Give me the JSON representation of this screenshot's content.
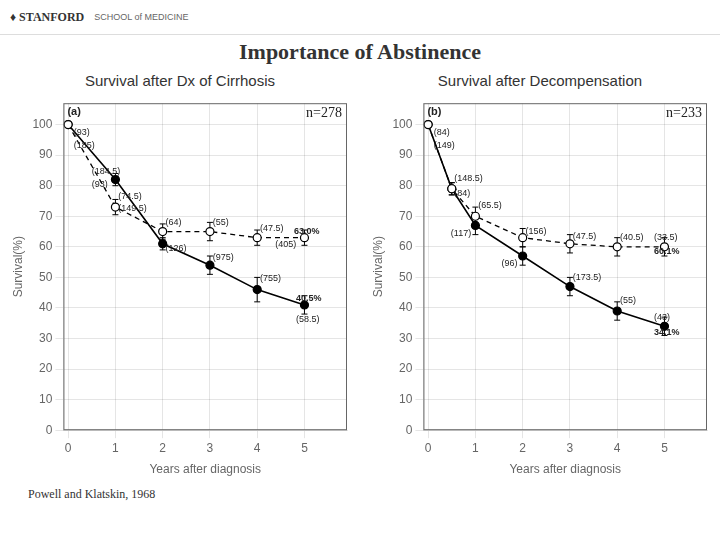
{
  "header": [
    "♦ STANFORD",
    "SCHOOL of MEDICINE"
  ],
  "title": "Importance of Abstinence",
  "footer": "Powell and Klatskin, 1968",
  "chart_data": [
    {
      "type": "line",
      "title": "Survival after Dx of Cirrhosis",
      "panel_label": "(a)",
      "sample_size": "n=278",
      "xlabel": "Years after diagnosis",
      "ylabel": "Survival(%)",
      "x": [
        0,
        1,
        2,
        3,
        4,
        5
      ],
      "xlim": [
        -0.1,
        5.9
      ],
      "xticks": [
        0,
        1,
        2,
        3,
        4,
        5
      ],
      "ylim": [
        0,
        107
      ],
      "yticks": [
        0,
        10,
        20,
        30,
        40,
        50,
        60,
        70,
        80,
        90,
        100
      ],
      "grid": true,
      "series": [
        {
          "values": [
            100,
            73,
            65,
            65,
            63,
            63
          ],
          "yerr": [
            0,
            2.5,
            2.5,
            3,
            2.5,
            2.5
          ],
          "color": "#000000",
          "marker": "open_circle",
          "line_style": "dashed"
        },
        {
          "values": [
            100,
            82,
            61,
            54,
            46,
            41
          ],
          "yerr": [
            0,
            2,
            2,
            3,
            4,
            3
          ],
          "color": "#000000",
          "marker": "circle",
          "line_style": "solid"
        }
      ],
      "annotations": [
        {
          "text": "(93)",
          "x": 0.12,
          "y": 101
        },
        {
          "text": "(185)",
          "x": 0.12,
          "y": 96.8
        },
        {
          "text": "(74.5)",
          "x": 1.06,
          "y": 76.5
        },
        {
          "text": "(149.5)",
          "x": 1.06,
          "y": 72.5
        },
        {
          "text": "(184.5)",
          "x": 0.5,
          "y": 84.5
        },
        {
          "text": "(93)",
          "x": 0.5,
          "y": 80.5
        },
        {
          "text": "(64)",
          "x": 2.06,
          "y": 68
        },
        {
          "text": "(126)",
          "x": 2.06,
          "y": 59.5
        },
        {
          "text": "(55)",
          "x": 3.06,
          "y": 68
        },
        {
          "text": "(975)",
          "x": 3.06,
          "y": 56.5
        },
        {
          "text": "(47.5)",
          "x": 4.06,
          "y": 66
        },
        {
          "text": "(405)",
          "x": 4.38,
          "y": 64.5
        },
        {
          "text": "(755)",
          "x": 4.06,
          "y": 49.5
        },
        {
          "text": "40.5%",
          "x": 4.82,
          "y": 43
        },
        {
          "text": "(58.5)",
          "x": 4.82,
          "y": 39.8
        },
        {
          "text": "63.0%",
          "x": 4.78,
          "y": 65
        }
      ]
    },
    {
      "type": "line",
      "title": "Survival after Decompensation",
      "panel_label": "(b)",
      "sample_size": "n=233",
      "xlabel": "Years after diagnosis",
      "ylabel": "Survival(%)",
      "x": [
        0,
        0.5,
        1,
        2,
        3,
        4,
        5
      ],
      "xlim": [
        -0.1,
        5.9
      ],
      "xticks": [
        0,
        1,
        2,
        3,
        4,
        5
      ],
      "ylim": [
        0,
        107
      ],
      "yticks": [
        0,
        10,
        20,
        30,
        40,
        50,
        60,
        70,
        80,
        90,
        100
      ],
      "grid": true,
      "series": [
        {
          "values": [
            100,
            79,
            70,
            63,
            61,
            60,
            60
          ],
          "yerr": [
            0,
            2,
            3,
            3,
            3,
            3,
            3
          ],
          "color": "#000000",
          "marker": "open_circle",
          "line_style": "dashed"
        },
        {
          "values": [
            100,
            79,
            67,
            57,
            47,
            39,
            34
          ],
          "yerr": [
            0,
            2,
            3,
            3,
            3,
            3,
            3
          ],
          "color": "#000000",
          "marker": "circle",
          "line_style": "solid"
        }
      ],
      "annotations": [
        {
          "text": "(84)",
          "x": 0.12,
          "y": 101
        },
        {
          "text": "(149)",
          "x": 0.12,
          "y": 96.8
        },
        {
          "text": "(148.5)",
          "x": 0.55,
          "y": 82.5
        },
        {
          "text": "(84)",
          "x": 0.55,
          "y": 77.5
        },
        {
          "text": "(65.5)",
          "x": 1.06,
          "y": 73.5
        },
        {
          "text": "(117)",
          "x": 0.48,
          "y": 64.5
        },
        {
          "text": "(156)",
          "x": 2.06,
          "y": 65
        },
        {
          "text": "(96)",
          "x": 1.55,
          "y": 54.5
        },
        {
          "text": "(47.5)",
          "x": 3.06,
          "y": 63.5
        },
        {
          "text": "(173.5)",
          "x": 3.06,
          "y": 50
        },
        {
          "text": "(40.5)",
          "x": 4.06,
          "y": 63
        },
        {
          "text": "(55)",
          "x": 4.06,
          "y": 42.5
        },
        {
          "text": "(33.5)",
          "x": 4.78,
          "y": 63
        },
        {
          "text": "60.1%",
          "x": 4.78,
          "y": 62
        },
        {
          "text": "(43)",
          "x": 4.78,
          "y": 37
        },
        {
          "text": "34.1%",
          "x": 4.78,
          "y": 35.5
        }
      ]
    }
  ]
}
